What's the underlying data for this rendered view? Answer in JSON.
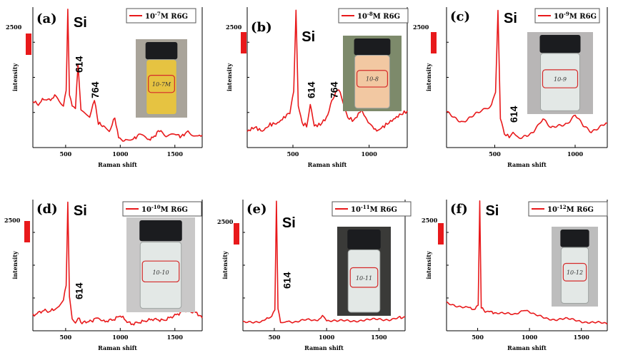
{
  "colors": {
    "trace": "#e8191b",
    "axis": "#000000",
    "legend_border": "#555555"
  },
  "common": {
    "xlabel": "Raman shift",
    "ylabel": "intensity",
    "scale_label": "2500"
  },
  "chart_data": [
    {
      "type": "line",
      "letter": "(a)",
      "legend": "10-7M R6G",
      "legend_base": "10",
      "legend_exp": "-7",
      "legend_rest": "M R6G",
      "xlim": [
        200,
        1750
      ],
      "xticks": [
        500,
        1000,
        1500
      ],
      "peaks": [
        {
          "label": "Si",
          "x": 520
        },
        {
          "label": "614",
          "x": 614
        },
        {
          "label": "764",
          "x": 764
        }
      ],
      "photo_text": "10-7M",
      "liquid": "yellow",
      "x": [
        200,
        250,
        300,
        350,
        400,
        440,
        480,
        505,
        520,
        535,
        560,
        590,
        614,
        640,
        680,
        720,
        764,
        800,
        860,
        900,
        950,
        985,
        1050,
        1120,
        1180,
        1250,
        1300,
        1360,
        1420,
        1500,
        1560,
        1620,
        1700,
        1750
      ],
      "y": [
        0.32,
        0.3,
        0.34,
        0.33,
        0.36,
        0.32,
        0.3,
        0.4,
        1.0,
        0.38,
        0.28,
        0.27,
        0.6,
        0.26,
        0.23,
        0.2,
        0.33,
        0.16,
        0.13,
        0.1,
        0.2,
        0.05,
        0.03,
        0.04,
        0.08,
        0.04,
        0.05,
        0.11,
        0.06,
        0.08,
        0.06,
        0.1,
        0.06,
        0.07
      ]
    },
    {
      "type": "line",
      "letter": "(b)",
      "legend": "10-8M R6G",
      "legend_base": "10",
      "legend_exp": "-8",
      "legend_rest": "M R6G",
      "xlim": [
        200,
        1250
      ],
      "xticks": [
        500,
        1000
      ],
      "peaks": [
        {
          "label": "Si",
          "x": 520
        },
        {
          "label": "614",
          "x": 614
        },
        {
          "label": "764",
          "x": 764
        }
      ],
      "photo_text": "10-8",
      "liquid": "peach",
      "x": [
        200,
        250,
        300,
        350,
        400,
        440,
        480,
        505,
        520,
        535,
        560,
        590,
        614,
        640,
        680,
        720,
        764,
        800,
        860,
        900,
        950,
        985,
        1050,
        1100,
        1150,
        1200,
        1250
      ],
      "y": [
        0.1,
        0.13,
        0.1,
        0.15,
        0.16,
        0.2,
        0.24,
        0.4,
        1.0,
        0.3,
        0.16,
        0.14,
        0.3,
        0.14,
        0.15,
        0.2,
        0.35,
        0.42,
        0.2,
        0.18,
        0.26,
        0.18,
        0.1,
        0.14,
        0.18,
        0.22,
        0.25
      ]
    },
    {
      "type": "line",
      "letter": "(c)",
      "legend": "10-9M R6G",
      "legend_base": "10",
      "legend_exp": "-9",
      "legend_rest": "M R6G",
      "xlim": [
        200,
        1200
      ],
      "xticks": [
        500,
        1000
      ],
      "peaks": [
        {
          "label": "Si",
          "x": 520
        },
        {
          "label": "614",
          "x": 614
        }
      ],
      "photo_text": "10-9",
      "liquid": "clear",
      "x": [
        200,
        250,
        300,
        350,
        400,
        440,
        480,
        505,
        520,
        535,
        560,
        590,
        614,
        650,
        700,
        760,
        800,
        850,
        900,
        950,
        1000,
        1050,
        1100,
        1150,
        1200
      ],
      "y": [
        0.24,
        0.2,
        0.17,
        0.2,
        0.24,
        0.26,
        0.3,
        0.4,
        1.0,
        0.2,
        0.08,
        0.06,
        0.09,
        0.05,
        0.06,
        0.12,
        0.2,
        0.12,
        0.14,
        0.16,
        0.22,
        0.14,
        0.1,
        0.13,
        0.16
      ]
    },
    {
      "type": "line",
      "letter": "(d)",
      "legend": "10-10M R6G",
      "legend_base": "10",
      "legend_exp": "-10",
      "legend_rest": "M R6G",
      "xlim": [
        200,
        1750
      ],
      "xticks": [
        500,
        1000,
        1500
      ],
      "peaks": [
        {
          "label": "Si",
          "x": 520
        },
        {
          "label": "614",
          "x": 614
        }
      ],
      "photo_text": "10-10",
      "liquid": "clear",
      "x": [
        200,
        250,
        300,
        350,
        400,
        440,
        480,
        505,
        520,
        535,
        560,
        590,
        614,
        650,
        700,
        760,
        800,
        850,
        900,
        950,
        1000,
        1050,
        1100,
        1200,
        1300,
        1400,
        1500,
        1600,
        1700,
        1750
      ],
      "y": [
        0.1,
        0.12,
        0.14,
        0.13,
        0.15,
        0.17,
        0.22,
        0.35,
        1.0,
        0.25,
        0.08,
        0.04,
        0.08,
        0.04,
        0.05,
        0.06,
        0.08,
        0.05,
        0.06,
        0.07,
        0.1,
        0.06,
        0.03,
        0.05,
        0.07,
        0.06,
        0.1,
        0.14,
        0.12,
        0.08
      ]
    },
    {
      "type": "line",
      "letter": "(e)",
      "legend": "10-11M R6G",
      "legend_base": "10",
      "legend_exp": "-11",
      "legend_rest": "M R6G",
      "xlim": [
        200,
        1750
      ],
      "xticks": [
        500,
        1000,
        1500
      ],
      "peaks": [
        {
          "label": "Si",
          "x": 520
        },
        {
          "label": "614",
          "x": 614
        }
      ],
      "photo_text": "10-11",
      "liquid": "clear",
      "x": [
        200,
        300,
        400,
        460,
        505,
        520,
        535,
        560,
        614,
        700,
        800,
        900,
        960,
        1000,
        1100,
        1200,
        1300,
        1400,
        1500,
        1600,
        1700,
        1750
      ],
      "y": [
        0.04,
        0.05,
        0.06,
        0.08,
        0.15,
        1.0,
        0.15,
        0.05,
        0.06,
        0.05,
        0.06,
        0.06,
        0.09,
        0.06,
        0.05,
        0.06,
        0.06,
        0.06,
        0.07,
        0.07,
        0.08,
        0.09
      ]
    },
    {
      "type": "line",
      "letter": "(f)",
      "legend": "10-12M R6G",
      "legend_base": "10",
      "legend_exp": "-12",
      "legend_rest": "M R6G",
      "xlim": [
        200,
        1750
      ],
      "xticks": [
        500,
        1000,
        1500
      ],
      "peaks": [
        {
          "label": "Si",
          "x": 520
        }
      ],
      "photo_text": "10-12",
      "liquid": "clear",
      "x": [
        200,
        300,
        400,
        460,
        505,
        520,
        535,
        560,
        650,
        750,
        850,
        950,
        1050,
        1150,
        1250,
        1350,
        1450,
        1550,
        1650,
        1750
      ],
      "y": [
        0.2,
        0.18,
        0.16,
        0.15,
        0.18,
        1.0,
        0.16,
        0.14,
        0.12,
        0.11,
        0.11,
        0.15,
        0.1,
        0.08,
        0.07,
        0.07,
        0.06,
        0.05,
        0.04,
        0.03
      ]
    }
  ]
}
